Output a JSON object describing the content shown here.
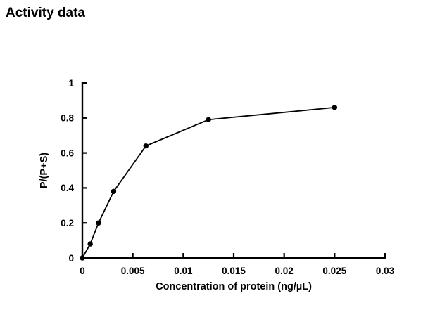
{
  "page": {
    "background": "#ffffff"
  },
  "chart_data": {
    "type": "line",
    "title": "Activity data",
    "xlabel": "Concentration of protein (ng/µL)",
    "ylabel": "P/(P+S)",
    "x": [
      0,
      0.00078,
      0.0016,
      0.0031,
      0.0063,
      0.0125,
      0.025
    ],
    "y": [
      0,
      0.08,
      0.2,
      0.38,
      0.64,
      0.79,
      0.86
    ],
    "xlim": [
      0,
      0.03
    ],
    "ylim": [
      0,
      1
    ],
    "xticks": [
      0,
      0.005,
      0.01,
      0.015,
      0.02,
      0.025,
      0.03
    ],
    "xtick_labels": [
      "0",
      "0.005",
      "0.01",
      "0.015",
      "0.02",
      "0.025",
      "0.03"
    ],
    "yticks": [
      0,
      0.2,
      0.4,
      0.6,
      0.8,
      1
    ],
    "ytick_labels": [
      "0",
      "0.2",
      "0.4",
      "0.6",
      "0.8",
      "1"
    ],
    "grid": false,
    "legend": null,
    "marker": "filled-circle",
    "line_color": "#000000",
    "marker_color": "#000000",
    "axis_color": "#000000",
    "text_color": "#000000"
  }
}
